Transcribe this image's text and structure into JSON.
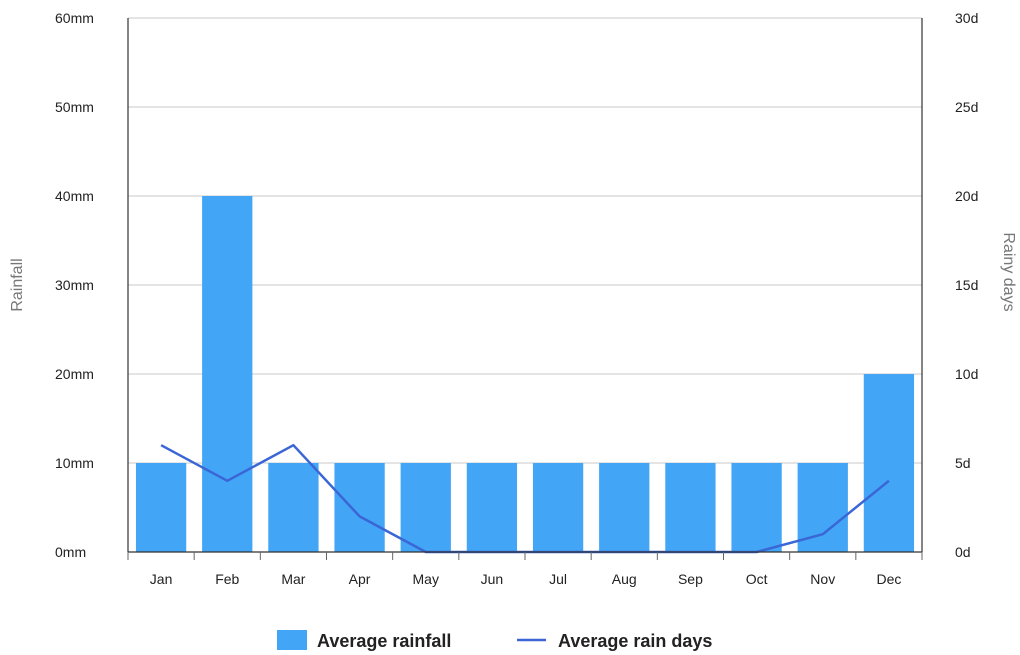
{
  "chart_data": {
    "type": "bar",
    "categories": [
      "Jan",
      "Feb",
      "Mar",
      "Apr",
      "May",
      "Jun",
      "Jul",
      "Aug",
      "Sep",
      "Oct",
      "Nov",
      "Dec"
    ],
    "series": [
      {
        "name": "Average rainfall",
        "type": "bar",
        "axis": "left",
        "color": "#42a5f5",
        "values": [
          10,
          40,
          10,
          10,
          10,
          10,
          10,
          10,
          10,
          10,
          10,
          20
        ]
      },
      {
        "name": "Average rain days",
        "type": "line",
        "axis": "right",
        "color": "#3a66d6",
        "values": [
          6,
          4,
          6,
          2,
          0,
          0,
          0,
          0,
          0,
          0,
          1,
          4
        ]
      }
    ],
    "ylabel": "Rainfall",
    "y2label": "Rainy days",
    "ylim": [
      0,
      60
    ],
    "y2lim": [
      0,
      30
    ],
    "y_ticks": [
      "0mm",
      "10mm",
      "20mm",
      "30mm",
      "40mm",
      "50mm",
      "60mm"
    ],
    "y2_ticks": [
      "0d",
      "5d",
      "10d",
      "15d",
      "20d",
      "25d",
      "30d"
    ],
    "grid": true,
    "legend_position": "bottom-center"
  }
}
